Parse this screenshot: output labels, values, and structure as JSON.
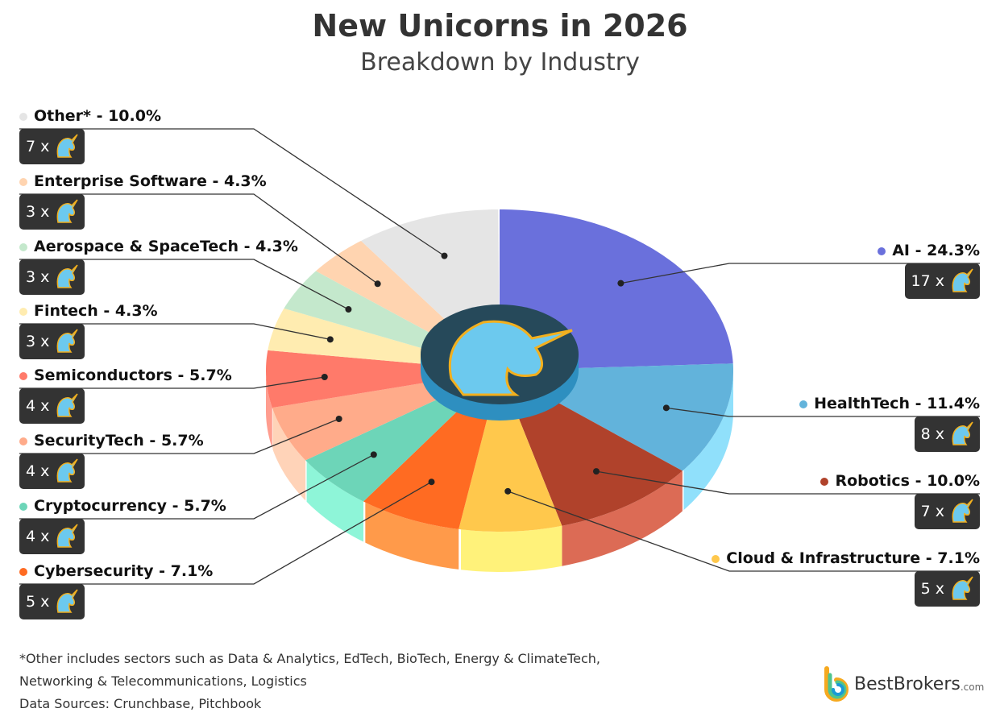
{
  "chart_data": {
    "type": "pie",
    "title": "New Unicorns in 2026",
    "subtitle": "Breakdown by Industry",
    "slices": [
      {
        "label": "AI",
        "percent": 24.3,
        "count": 17,
        "color": "#6a70dc",
        "side": "#5a5fc0"
      },
      {
        "label": "HealthTech",
        "percent": 11.4,
        "count": 8,
        "color": "#62b3db",
        "side": "#90e0fb"
      },
      {
        "label": "Robotics",
        "percent": 10.0,
        "count": 7,
        "color": "#b0422b",
        "side": "#dc6b55"
      },
      {
        "label": "Cloud & Infrastructure",
        "percent": 7.1,
        "count": 5,
        "color": "#ffc84c",
        "side": "#fff27a"
      },
      {
        "label": "Cybersecurity",
        "percent": 7.1,
        "count": 5,
        "color": "#ff6b22",
        "side": "#ff9a4a"
      },
      {
        "label": "Cryptocurrency",
        "percent": 5.7,
        "count": 4,
        "color": "#6dd5b8",
        "side": "#8ef5d8"
      },
      {
        "label": "SecurityTech",
        "percent": 5.7,
        "count": 4,
        "color": "#ffab8a",
        "side": "#ffd3b8"
      },
      {
        "label": "Semiconductors",
        "percent": 5.7,
        "count": 4,
        "color": "#ff7a6a",
        "side": "#ff9d8f"
      },
      {
        "label": "Fintech",
        "percent": 4.3,
        "count": 3,
        "color": "#ffecb0",
        "side": "#fff4cc"
      },
      {
        "label": "Aerospace & SpaceTech",
        "percent": 4.3,
        "count": 3,
        "color": "#c4e8cc",
        "side": "#d8f2dc"
      },
      {
        "label": "Enterprise Software",
        "percent": 4.3,
        "count": 3,
        "color": "#ffd4b0",
        "side": "#ffe2c8"
      },
      {
        "label": "Other*",
        "percent": 10.0,
        "count": 7,
        "color": "#e5e5e5",
        "side": "#efefef"
      }
    ],
    "labels_text": [
      "AI - 24.3%",
      "HealthTech - 11.4%",
      "Robotics - 10.0%",
      "Cloud & Infrastructure - 7.1%",
      "Cybersecurity - 7.1%",
      "Cryptocurrency - 5.7%",
      "SecurityTech - 5.7%",
      "Semiconductors - 5.7%",
      "Fintech - 4.3%",
      "Aerospace & SpaceTech - 4.3%",
      "Enterprise Software - 4.3%",
      "Other* - 10.0%"
    ],
    "counts_text": [
      "17 x",
      "8 x",
      "7 x",
      "5 x",
      "5 x",
      "4 x",
      "4 x",
      "4 x",
      "3 x",
      "3 x",
      "3 x",
      "7 x"
    ],
    "icon": "unicorn-head-icon"
  },
  "footnotes": [
    "*Other includes sectors such as Data & Analytics, EdTech, BioTech, Energy & ClimateTech,",
    "Networking & Telecommunications, Logistics",
    "Data Sources: Crunchbase, Pitchbook"
  ],
  "logo": {
    "brand": "BestBrokers",
    "suffix": ".com"
  }
}
